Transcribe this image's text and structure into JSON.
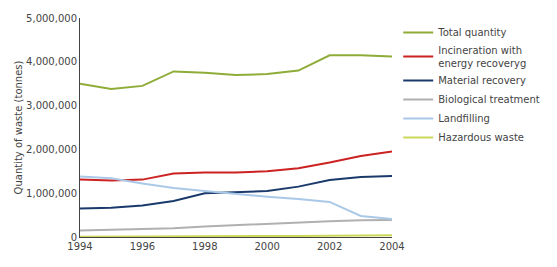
{
  "chart_data": {
    "type": "line",
    "x": [
      1994,
      1995,
      1996,
      1997,
      1998,
      1999,
      2000,
      2001,
      2002,
      2003,
      2004
    ],
    "series": [
      {
        "name": "Total quantity",
        "color": "#8fac38",
        "values": [
          3500000,
          3380000,
          3450000,
          3780000,
          3750000,
          3700000,
          3720000,
          3800000,
          4150000,
          4150000,
          4120000
        ]
      },
      {
        "name": "Incineration with\nenergy recoveryg",
        "color": "#cc2222",
        "values": [
          1310000,
          1290000,
          1310000,
          1450000,
          1470000,
          1470000,
          1500000,
          1570000,
          1700000,
          1850000,
          1950000
        ]
      },
      {
        "name": "Material recovery",
        "color": "#1a3a6b",
        "values": [
          650000,
          670000,
          720000,
          820000,
          1000000,
          1020000,
          1050000,
          1150000,
          1300000,
          1370000,
          1390000
        ]
      },
      {
        "name": "Biological treatment",
        "color": "#b0b0b0",
        "values": [
          150000,
          165000,
          180000,
          200000,
          240000,
          270000,
          310000,
          340000,
          360000,
          380000,
          390000
        ]
      },
      {
        "name": "Landfilling",
        "color": "#aac8e8",
        "values": [
          1380000,
          1340000,
          1220000,
          1120000,
          1050000,
          980000,
          920000,
          870000,
          800000,
          480000,
          410000
        ]
      },
      {
        "name": "Hazardous waste",
        "color": "#ccd85a",
        "values": [
          5000,
          6000,
          7000,
          8000,
          10000,
          15000,
          20000,
          25000,
          30000,
          35000,
          40000
        ]
      }
    ],
    "y_label": "Quantity of waste (tonnes)",
    "xlim": [
      1994,
      2004
    ],
    "xticks": [
      1994,
      1996,
      1998,
      2000,
      2002,
      2004
    ],
    "ylim": [
      0,
      5000000
    ],
    "yticks": [
      0,
      {
        "value": 1000000,
        "label": "1,000,000"
      },
      {
        "value": 2000000,
        "label": "2,000,000"
      },
      {
        "value": 3000000,
        "label": "3,000,000"
      },
      {
        "value": 4000000,
        "label": "4,000,000"
      },
      {
        "value": 5000000,
        "label": "5,000,000"
      }
    ],
    "grid": false,
    "legend": "upper right"
  }
}
